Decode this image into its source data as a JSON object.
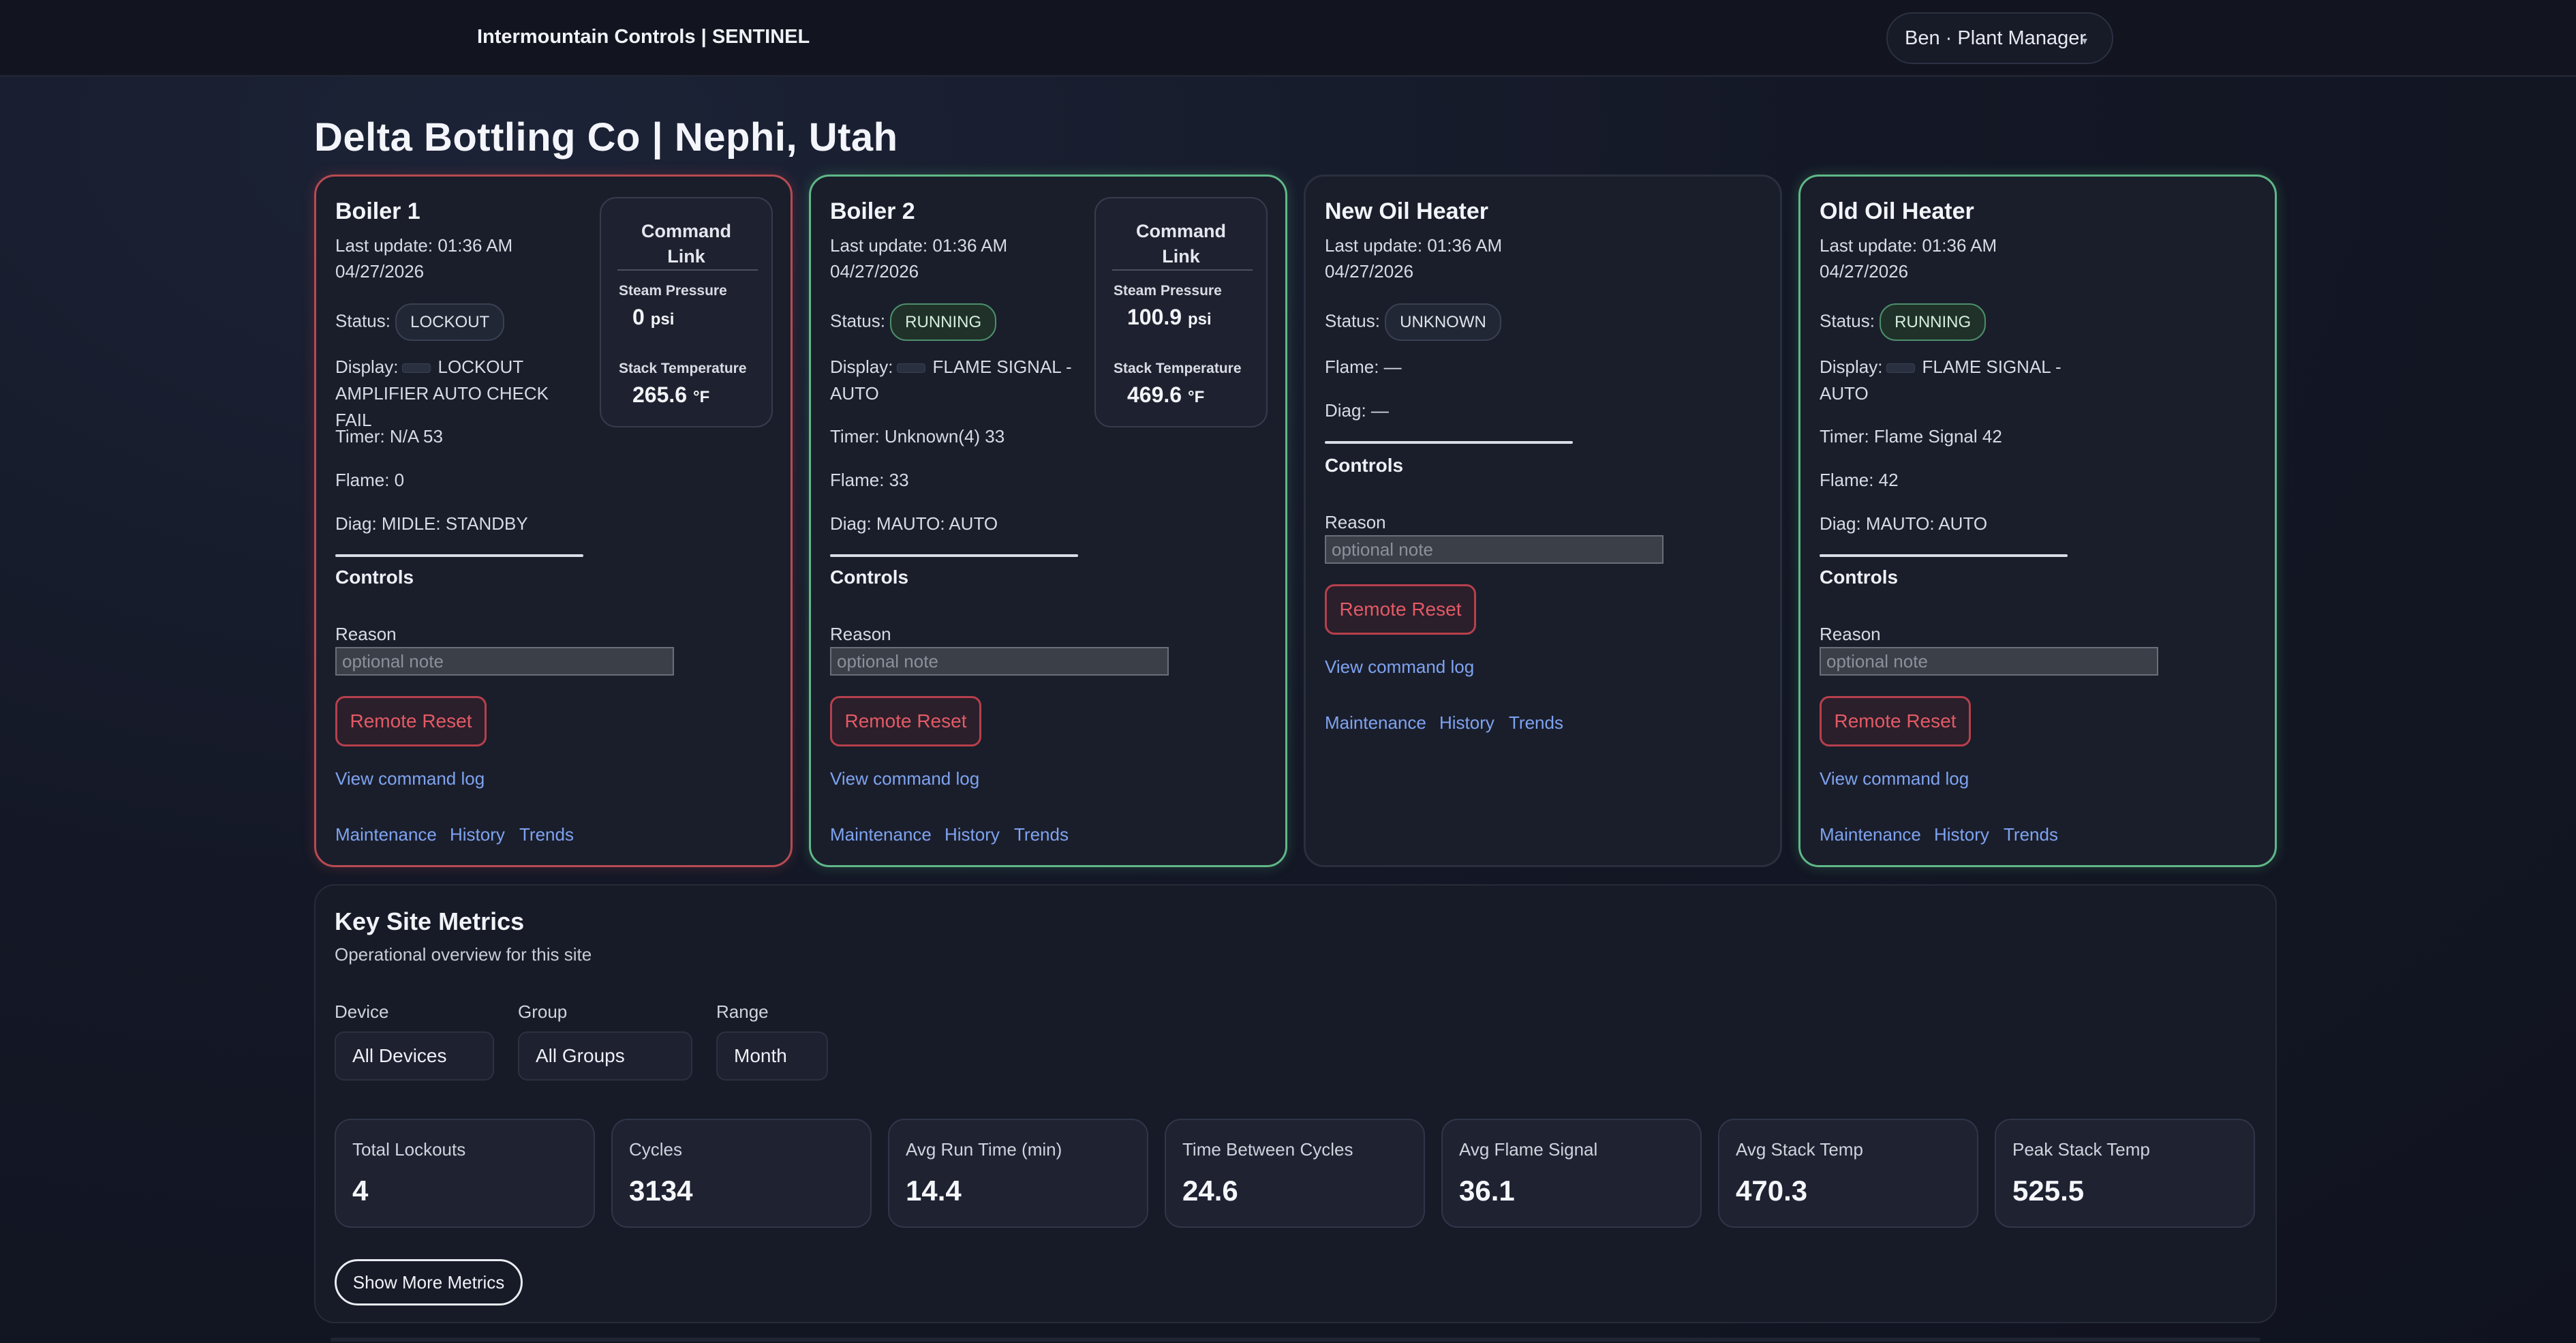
{
  "header": {
    "brand": "Intermountain Controls | SENTINEL",
    "user": "Ben · Plant Manager",
    "caret": "▾"
  },
  "site": {
    "title": "Delta Bottling Co | Nephi, Utah"
  },
  "devices": [
    {
      "name": "Boiler 1",
      "last_update": "Last update: 01:36 AM",
      "date": "04/27/2026",
      "status_label": "Status:",
      "status": "LOCKOUT",
      "display_label": "Display:",
      "display_line1": "LOCKOUT",
      "display_line2": "AMPLIFIER AUTO CHECK FAIL",
      "timer": "Timer: N/A 53",
      "flame": "Flame: 0",
      "diag": "Diag: MIDLE: STANDBY",
      "command_link": {
        "title_line1": "Command",
        "title_line2": "Link",
        "pressure_label": "Steam Pressure",
        "pressure_value": "0",
        "pressure_unit": "psi",
        "temp_label": "Stack Temperature",
        "temp_value": "265.6",
        "temp_unit": "°F"
      }
    },
    {
      "name": "Boiler 2",
      "last_update": "Last update: 01:36 AM",
      "date": "04/27/2026",
      "status_label": "Status:",
      "status": "RUNNING",
      "display_label": "Display:",
      "display_line1": "FLAME SIGNAL -",
      "display_line2": "AUTO",
      "timer": "Timer: Unknown(4) 33",
      "flame": "Flame: 33",
      "diag": "Diag: MAUTO: AUTO",
      "command_link": {
        "title_line1": "Command",
        "title_line2": "Link",
        "pressure_label": "Steam Pressure",
        "pressure_value": "100.9",
        "pressure_unit": "psi",
        "temp_label": "Stack Temperature",
        "temp_value": "469.6",
        "temp_unit": "°F"
      }
    },
    {
      "name": "New Oil Heater",
      "last_update": "Last update: 01:36 AM",
      "date": "04/27/2026",
      "status_label": "Status:",
      "status": "UNKNOWN",
      "flame": "Flame: —",
      "diag": "Diag: —"
    },
    {
      "name": "Old Oil Heater",
      "last_update": "Last update: 01:36 AM",
      "date": "04/27/2026",
      "status_label": "Status:",
      "status": "RUNNING",
      "display_label": "Display:",
      "display_line1": "FLAME SIGNAL -",
      "display_line2": "AUTO",
      "timer": "Timer: Flame Signal 42",
      "flame": "Flame: 42",
      "diag": "Diag: MAUTO: AUTO"
    }
  ],
  "controls": {
    "heading": "Controls",
    "reason_label": "Reason",
    "reason_placeholder": "optional note",
    "reset_label": "Remote Reset",
    "command_log": "View command log",
    "links": {
      "maintenance": "Maintenance",
      "history": "History",
      "trends": "Trends"
    }
  },
  "metrics": {
    "title": "Key Site Metrics",
    "subtitle": "Operational overview for this site",
    "filters": {
      "device_label": "Device",
      "device_value": "All Devices",
      "group_label": "Group",
      "group_value": "All Groups",
      "range_label": "Range",
      "range_value": "Month"
    },
    "tiles": [
      {
        "label": "Total Lockouts",
        "value": "4"
      },
      {
        "label": "Cycles",
        "value": "3134"
      },
      {
        "label": "Avg Run Time (min)",
        "value": "14.4"
      },
      {
        "label": "Time Between Cycles",
        "value": "24.6"
      },
      {
        "label": "Avg Flame Signal",
        "value": "36.1"
      },
      {
        "label": "Avg Stack Temp",
        "value": "470.3"
      },
      {
        "label": "Peak Stack Temp",
        "value": "525.5"
      }
    ],
    "more_label": "Show More Metrics"
  },
  "colors": {
    "background": "#141826",
    "lockout_border": "#b84a52",
    "running_border": "#5fb887",
    "link": "#7ea3f0",
    "reset": "#e45a66"
  }
}
